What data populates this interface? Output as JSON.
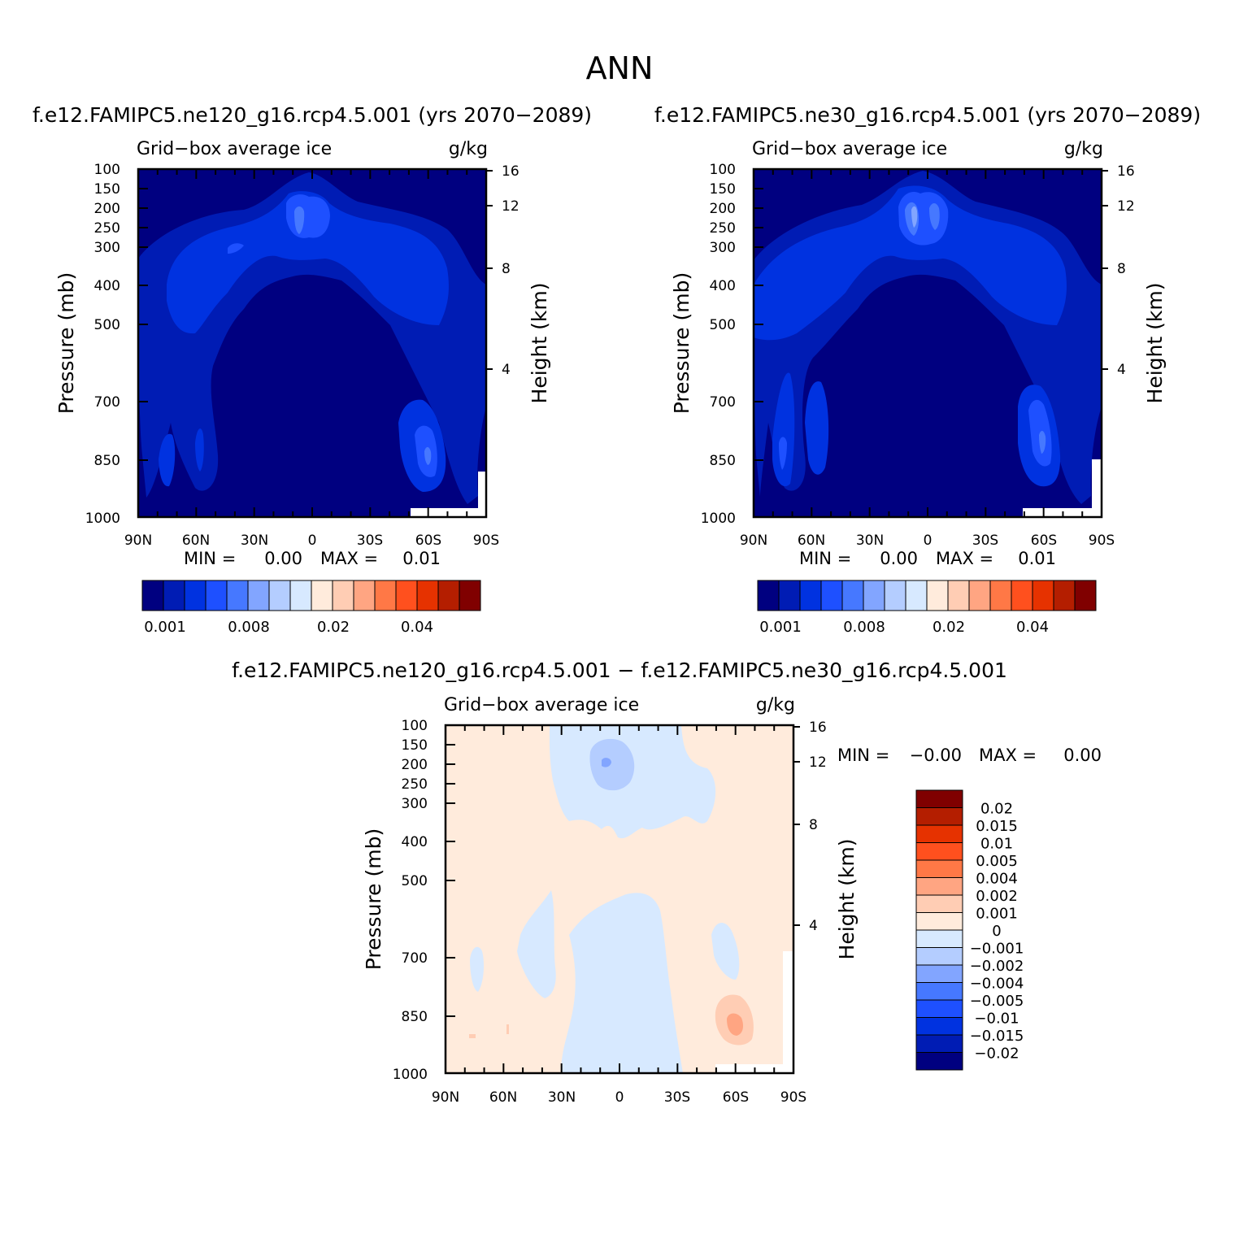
{
  "title": "ANN",
  "chart_data": [
    {
      "type": "heatmap",
      "title": "f.e12.FAMIPC5.ne120_g16.rcp4.5.001 (yrs 2070−2089)",
      "subtitle_left": "Grid−box average ice",
      "subtitle_right": "g/kg",
      "ylabel": "Pressure (mb)",
      "ylabel2": "Height (km)",
      "x_ticks": [
        "90N",
        "60N",
        "30N",
        "0",
        "30S",
        "60S",
        "90S"
      ],
      "y_ticks": [
        "100",
        "150",
        "200",
        "250",
        "300",
        "400",
        "500",
        "700",
        "850",
        "1000"
      ],
      "y2_ticks": [
        "16",
        "12",
        "8",
        "4"
      ],
      "stats": {
        "min_label": "MIN =",
        "min_value": "0.00",
        "max_label": "MAX =",
        "max_value": "0.01"
      },
      "colorbar": {
        "orientation": "horizontal",
        "labels": [
          "0.001",
          "0.008",
          "0.02",
          "0.04"
        ]
      }
    },
    {
      "type": "heatmap",
      "title": "f.e12.FAMIPC5.ne30_g16.rcp4.5.001 (yrs 2070−2089)",
      "subtitle_left": "Grid−box average ice",
      "subtitle_right": "g/kg",
      "ylabel": "Pressure (mb)",
      "ylabel2": "Height (km)",
      "x_ticks": [
        "90N",
        "60N",
        "30N",
        "0",
        "30S",
        "60S",
        "90S"
      ],
      "y_ticks": [
        "100",
        "150",
        "200",
        "250",
        "300",
        "400",
        "500",
        "700",
        "850",
        "1000"
      ],
      "y2_ticks": [
        "16",
        "12",
        "8",
        "4"
      ],
      "stats": {
        "min_label": "MIN =",
        "min_value": "0.00",
        "max_label": "MAX =",
        "max_value": "0.01"
      },
      "colorbar": {
        "orientation": "horizontal",
        "labels": [
          "0.001",
          "0.008",
          "0.02",
          "0.04"
        ]
      }
    },
    {
      "type": "heatmap",
      "title": "f.e12.FAMIPC5.ne120_g16.rcp4.5.001 − f.e12.FAMIPC5.ne30_g16.rcp4.5.001",
      "subtitle_left": "Grid−box average ice",
      "subtitle_right": "g/kg",
      "ylabel": "Pressure (mb)",
      "ylabel2": "Height (km)",
      "x_ticks": [
        "90N",
        "60N",
        "30N",
        "0",
        "30S",
        "60S",
        "90S"
      ],
      "y_ticks": [
        "100",
        "150",
        "200",
        "250",
        "300",
        "400",
        "500",
        "700",
        "850",
        "1000"
      ],
      "y2_ticks": [
        "16",
        "12",
        "8",
        "4"
      ],
      "stats": {
        "min_label": "MIN =",
        "min_value": "−0.00",
        "max_label": "MAX =",
        "max_value": "0.00"
      },
      "colorbar": {
        "orientation": "vertical",
        "labels": [
          "0.02",
          "0.015",
          "0.01",
          "0.005",
          "0.004",
          "0.002",
          "0.001",
          "0",
          "−0.001",
          "−0.002",
          "−0.004",
          "−0.005",
          "−0.01",
          "−0.015",
          "−0.02"
        ]
      }
    }
  ],
  "colors": {
    "abs_scale": [
      "#000080",
      "#001cb4",
      "#0032e0",
      "#1e50ff",
      "#4678ff",
      "#82a5ff",
      "#b4cdff",
      "#d7e9ff",
      "#ffebdc",
      "#ffcdb4",
      "#ffa582",
      "#ff7846",
      "#ff501e",
      "#e63200",
      "#b41e00",
      "#800000"
    ],
    "diff_scale": [
      "#800000",
      "#b41e00",
      "#e63200",
      "#ff501e",
      "#ff7846",
      "#ffa582",
      "#ffcdb4",
      "#ffebdc",
      "#d7e9ff",
      "#b4cdff",
      "#82a5ff",
      "#4678ff",
      "#1e50ff",
      "#0032e0",
      "#001cb4",
      "#000080"
    ]
  }
}
